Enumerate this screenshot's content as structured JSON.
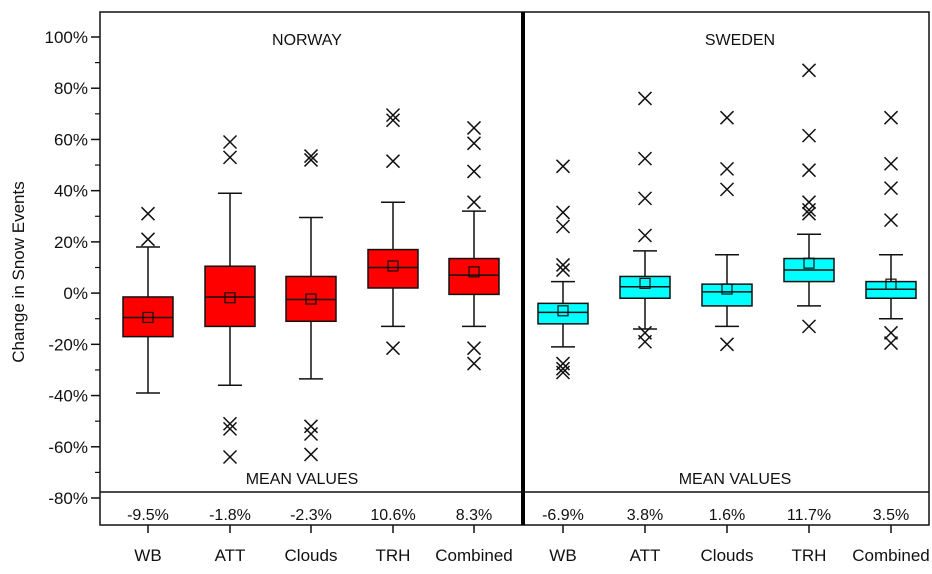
{
  "chart_data": {
    "type": "box",
    "ylabel": "Change in Snow Events",
    "y_unit": "%",
    "ylim": [
      -80,
      105
    ],
    "y_ticks": [
      100,
      80,
      60,
      40,
      20,
      0,
      -20,
      -40,
      -60,
      -80
    ],
    "y_tick_labels": [
      "100%",
      "80%",
      "60%",
      "40%",
      "20%",
      "0%",
      "-20%",
      "-40%",
      "-60%",
      "-80%"
    ],
    "categories": [
      "WB",
      "ATT",
      "Clouds",
      "TRH",
      "Combined"
    ],
    "mean_values_label": "MEAN VALUES",
    "panels": [
      {
        "name": "NORWAY",
        "color": "#ff0000",
        "boxes": [
          {
            "category": "WB",
            "whisker_low": -39,
            "q1": -17,
            "median": -9.5,
            "q3": -1.5,
            "whisker_high": 18,
            "mean": -9.5,
            "outliers": [
              21,
              31
            ],
            "mean_label": "-9.5%"
          },
          {
            "category": "ATT",
            "whisker_low": -36,
            "q1": -13,
            "median": -1.5,
            "q3": 10.5,
            "whisker_high": 39,
            "mean": -1.8,
            "outliers": [
              53,
              59,
              -51,
              -53,
              -64
            ],
            "mean_label": "-1.8%"
          },
          {
            "category": "Clouds",
            "whisker_low": -33.5,
            "q1": -11,
            "median": -2.5,
            "q3": 6.5,
            "whisker_high": 29.5,
            "mean": -2.3,
            "outliers": [
              52,
              53.5,
              -52,
              -55,
              -63
            ],
            "mean_label": "-2.3%"
          },
          {
            "category": "TRH",
            "whisker_low": -13,
            "q1": 2,
            "median": 10,
            "q3": 17,
            "whisker_high": 35.5,
            "mean": 10.6,
            "outliers": [
              51.5,
              67.5,
              69.5,
              -21.5
            ],
            "mean_label": "10.6%"
          },
          {
            "category": "Combined",
            "whisker_low": -13,
            "q1": -0.5,
            "median": 7,
            "q3": 13.5,
            "whisker_high": 32,
            "mean": 8.3,
            "outliers": [
              35.5,
              47.5,
              58.5,
              64.5,
              -21.5,
              -27.5
            ],
            "mean_label": "8.3%"
          }
        ]
      },
      {
        "name": "SWEDEN",
        "color": "#00ffff",
        "boxes": [
          {
            "category": "WB",
            "whisker_low": -21,
            "q1": -12,
            "median": -7.5,
            "q3": -4,
            "whisker_high": 4.5,
            "mean": -6.9,
            "outliers": [
              9,
              11,
              26,
              31.5,
              49.5,
              -27.5,
              -29.5,
              -31
            ],
            "mean_label": "-6.9%"
          },
          {
            "category": "ATT",
            "whisker_low": -14,
            "q1": -2,
            "median": 2.5,
            "q3": 6.5,
            "whisker_high": 16.5,
            "mean": 3.8,
            "outliers": [
              22.5,
              37,
              52.5,
              76,
              -15.5,
              -19
            ],
            "mean_label": "3.8%"
          },
          {
            "category": "Clouds",
            "whisker_low": -13,
            "q1": -5,
            "median": 0.5,
            "q3": 3.5,
            "whisker_high": 15,
            "mean": 1.6,
            "outliers": [
              40.5,
              48.5,
              68.5,
              -20
            ],
            "mean_label": "1.6%"
          },
          {
            "category": "TRH",
            "whisker_low": -5,
            "q1": 4.5,
            "median": 9,
            "q3": 13.5,
            "whisker_high": 23,
            "mean": 11.7,
            "outliers": [
              31,
              32.5,
              35.5,
              48,
              61.5,
              87,
              -13
            ],
            "mean_label": "11.7%"
          },
          {
            "category": "Combined",
            "whisker_low": -10,
            "q1": -2,
            "median": 1.5,
            "q3": 4.5,
            "whisker_high": 15,
            "mean": 3.5,
            "outliers": [
              28.5,
              41,
              50.5,
              68.5,
              -15.5,
              -19.5
            ],
            "mean_label": "3.5%"
          }
        ]
      }
    ]
  }
}
